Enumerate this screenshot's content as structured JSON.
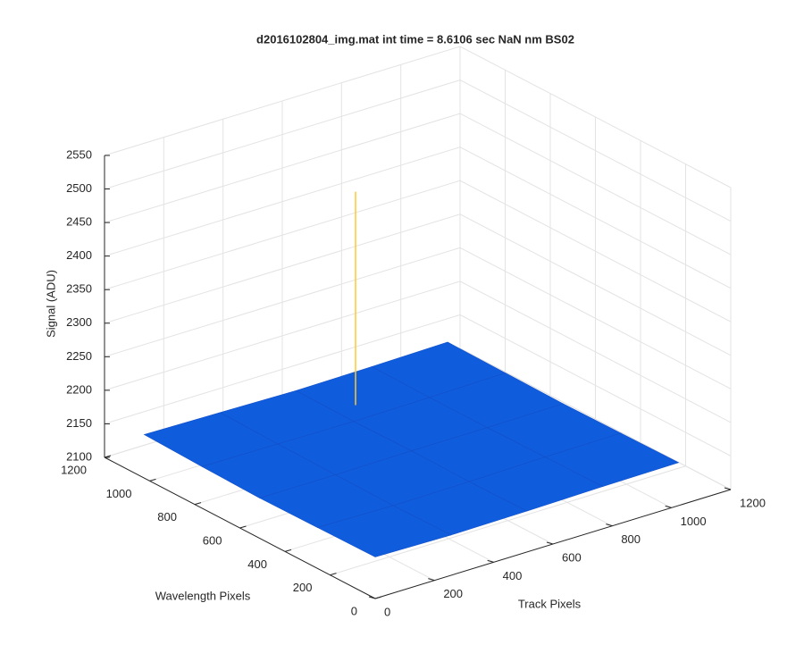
{
  "chart_data": {
    "type": "surface",
    "title": "d2016102804_img.mat int time = 8.6106 sec  NaN nm BS02",
    "xlabel": "Track Pixels",
    "ylabel": "Wavelength Pixels",
    "zlabel": "Signal (ADU)",
    "x": [
      0,
      256,
      512,
      768,
      1024
    ],
    "y": [
      0,
      256,
      512,
      768,
      1024
    ],
    "z": [
      [
        2162,
        2160,
        2161,
        2163,
        2164
      ],
      [
        2161,
        2159,
        2160,
        2162,
        2163
      ],
      [
        2160,
        2160,
        2161,
        2161,
        2162
      ],
      [
        2162,
        2161,
        2160,
        2161,
        2163
      ],
      [
        2165,
        2163,
        2161,
        2162,
        2164
      ]
    ],
    "peaks": [
      {
        "x": 577,
        "y": 845,
        "z": 2480
      }
    ],
    "xlim": [
      0,
      1200
    ],
    "ylim": [
      0,
      1200
    ],
    "zlim": [
      2100,
      2550
    ],
    "xticks": [
      0,
      200,
      400,
      600,
      800,
      1000,
      1200
    ],
    "yticks": [
      0,
      200,
      400,
      600,
      800,
      1000,
      1200
    ],
    "zticks": [
      2100,
      2150,
      2200,
      2250,
      2300,
      2350,
      2400,
      2450,
      2500,
      2550
    ],
    "grid": true,
    "colormap": [
      "#352a87",
      "#0f5cdd",
      "#1481d6",
      "#06a4ca",
      "#2eb7a4",
      "#87bf77",
      "#d1bb59",
      "#fec832",
      "#f9fb0e"
    ]
  }
}
